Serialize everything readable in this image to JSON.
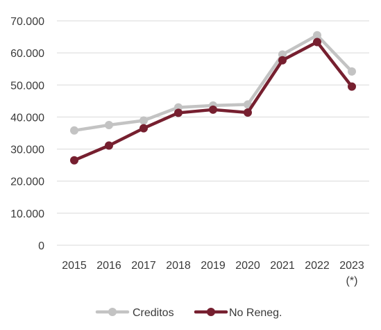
{
  "chart_data": {
    "type": "line",
    "categories": [
      "2015",
      "2016",
      "2017",
      "2018",
      "2019",
      "2020",
      "2021",
      "2022",
      "2023\n(*)"
    ],
    "ylim": [
      0,
      70000
    ],
    "y_ticks": [
      0,
      10000,
      20000,
      30000,
      40000,
      50000,
      60000,
      70000
    ],
    "y_tick_labels": [
      "0",
      "10.000",
      "20.000",
      "30.000",
      "40.000",
      "50.000",
      "60.000",
      "70.000"
    ],
    "grid": "horizontal",
    "legend_position": "bottom",
    "series": [
      {
        "name": "Creditos",
        "color": "#c3c3c3",
        "values": [
          35800,
          37500,
          38900,
          43000,
          43600,
          43900,
          59500,
          65500,
          54200
        ]
      },
      {
        "name": "No Reneg.",
        "color": "#761f2f",
        "values": [
          26500,
          31100,
          36500,
          41300,
          42300,
          41400,
          57700,
          63400,
          49500
        ]
      }
    ]
  }
}
